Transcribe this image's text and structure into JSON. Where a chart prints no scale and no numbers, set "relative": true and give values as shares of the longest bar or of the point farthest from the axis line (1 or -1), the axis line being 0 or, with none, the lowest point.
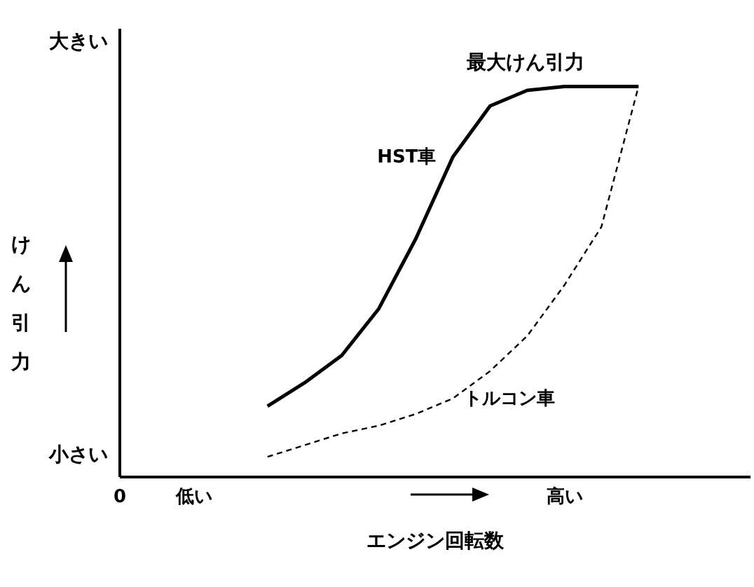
{
  "chart_data": {
    "type": "line",
    "relative": true,
    "xlabel": "エンジン回転数",
    "ylabel": "けん引力",
    "categories": [
      "0",
      null,
      "低い",
      null,
      null,
      null,
      null,
      null,
      null,
      null,
      null,
      null,
      "高い",
      null,
      null,
      null,
      null,
      null
    ],
    "annotations": [
      "大きい",
      "小さい",
      "最大けん引力"
    ],
    "marker": "none",
    "series": [
      {
        "name": "HST車",
        "color": "#000000",
        "line_style": "solid",
        "values": [
          null,
          null,
          null,
          null,
          0.18,
          0.24,
          0.31,
          0.43,
          0.61,
          0.82,
          0.95,
          0.99,
          1,
          1,
          1,
          null,
          null,
          null
        ]
      },
      {
        "name": "トルコン車",
        "color": "#000000",
        "line_style": "dashed",
        "values": [
          null,
          null,
          null,
          null,
          0.05,
          0.08,
          0.11,
          0.13,
          0.16,
          0.2,
          0.27,
          0.36,
          0.49,
          0.64,
          1,
          null,
          null,
          null
        ]
      }
    ]
  }
}
